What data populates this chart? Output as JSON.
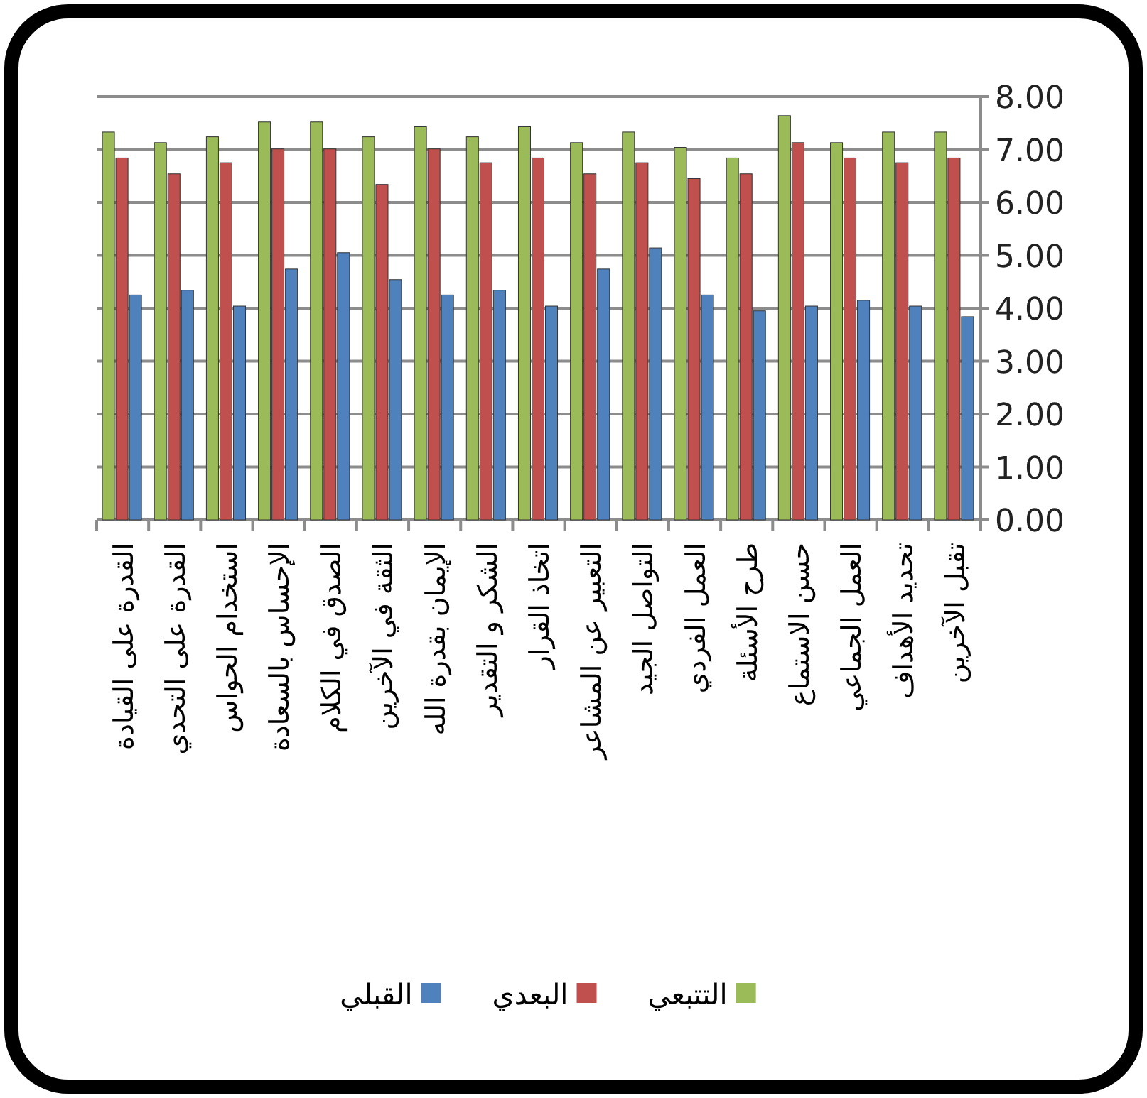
{
  "chart_data": {
    "type": "bar",
    "categories": [
      "القدرة على القيادة",
      "القدرة على التحدي",
      "استخدام الحواس",
      "الإحساس بالسعادة",
      "الصدق في الكلام",
      "الثقة في الآخرين",
      "الإيمان بقدرة الله",
      "الشكر و التقدير",
      "اتخاذ القرار",
      "التعبير عن المشاعر",
      "التواصل الجيد",
      "العمل الفردي",
      "طرح الأسئلة",
      "حسن الاستماع",
      "العمل الجماعي",
      "تحديد الأهداف",
      "تقبل الآخرين"
    ],
    "series": [
      {
        "name": "القبلي",
        "color": "#4f81bd",
        "values": [
          4.25,
          4.34,
          4.04,
          4.74,
          5.05,
          4.54,
          4.25,
          4.34,
          4.04,
          4.74,
          5.14,
          4.25,
          3.95,
          4.04,
          4.15,
          4.04,
          3.84
        ]
      },
      {
        "name": "البعدي",
        "color": "#c0504d",
        "values": [
          6.84,
          6.54,
          6.75,
          7.01,
          7.01,
          6.34,
          7.01,
          6.75,
          6.84,
          6.54,
          6.75,
          6.45,
          6.54,
          7.13,
          6.84,
          6.75,
          6.84
        ]
      },
      {
        "name": "التتبعي",
        "color": "#9bbb59",
        "values": [
          7.33,
          7.13,
          7.24,
          7.52,
          7.52,
          7.24,
          7.43,
          7.24,
          7.43,
          7.13,
          7.33,
          7.04,
          6.84,
          7.64,
          7.13,
          7.33,
          7.33
        ]
      }
    ],
    "ylim": [
      0,
      8
    ],
    "yticks": [
      {
        "value": 0,
        "label": "0.00"
      },
      {
        "value": 1,
        "label": "1.00"
      },
      {
        "value": 2,
        "label": "2.00"
      },
      {
        "value": 3,
        "label": "3.00"
      },
      {
        "value": 4,
        "label": "4.00"
      },
      {
        "value": 5,
        "label": "5.00"
      },
      {
        "value": 6,
        "label": "6.00"
      },
      {
        "value": 7,
        "label": "7.00"
      },
      {
        "value": 8,
        "label": "8.00"
      }
    ],
    "grid": "y",
    "legend": "bottom"
  }
}
